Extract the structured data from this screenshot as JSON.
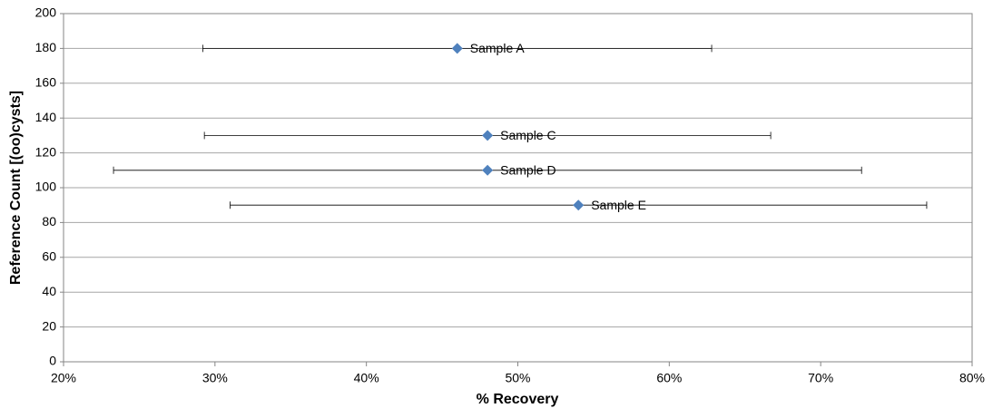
{
  "chart_data": {
    "type": "scatter",
    "x_label": "% Recovery",
    "y_label": "Reference Count [(oo)cysts]",
    "xlim": [
      20,
      80
    ],
    "xticks": [
      {
        "value": 20,
        "label": "20%"
      },
      {
        "value": 30,
        "label": "30%"
      },
      {
        "value": 40,
        "label": "40%"
      },
      {
        "value": 50,
        "label": "50%"
      },
      {
        "value": 60,
        "label": "60%"
      },
      {
        "value": 70,
        "label": "70%"
      },
      {
        "value": 80,
        "label": "80%"
      }
    ],
    "ylim": [
      0,
      200
    ],
    "yticks": [
      0,
      20,
      40,
      60,
      80,
      100,
      120,
      140,
      160,
      180,
      200
    ],
    "grid": true,
    "series": [
      {
        "color": "#4f81bd",
        "labels": [
          "Sample A",
          "Sample C",
          "Sample D",
          "Sample E"
        ],
        "x": [
          46,
          48,
          48,
          54
        ],
        "values": [
          180,
          130,
          110,
          90
        ],
        "xerr": [
          16.8,
          18.7,
          24.7,
          23
        ]
      }
    ]
  }
}
